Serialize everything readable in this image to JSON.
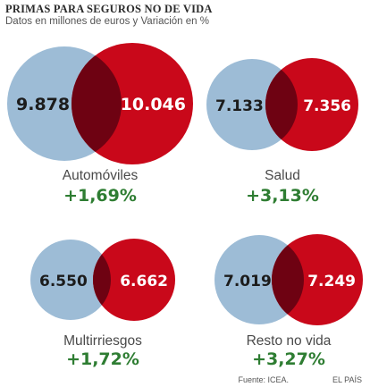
{
  "header": {
    "title": "Primas para seguros no de vida",
    "subtitle": "Datos en millones de euros y Variación en %"
  },
  "footer": {
    "source": "Fuente: ICEA.",
    "brand": "EL PAÍS"
  },
  "colors": {
    "blue": "#9dbcd6",
    "red": "#c9081a",
    "overlap": "#6e0212",
    "positive": "#2e7d32",
    "text_dark": "#1c1c1c",
    "text_light": "#ffffff"
  },
  "chart_data": {
    "type": "venn",
    "title": "Primas para seguros no de vida",
    "subtitle": "Datos en millones de euros y Variación en %",
    "panels": [
      {
        "category": "Automóviles",
        "left_value": "9.878",
        "right_value": "10.046",
        "change": "+1,69%"
      },
      {
        "category": "Salud",
        "left_value": "7.133",
        "right_value": "7.356",
        "change": "+3,13%"
      },
      {
        "category": "Multirriesgos",
        "left_value": "6.550",
        "right_value": "6.662",
        "change": "+1,72%"
      },
      {
        "category": "Resto no vida",
        "left_value": "7.019",
        "right_value": "7.249",
        "change": "+3,27%"
      }
    ]
  }
}
